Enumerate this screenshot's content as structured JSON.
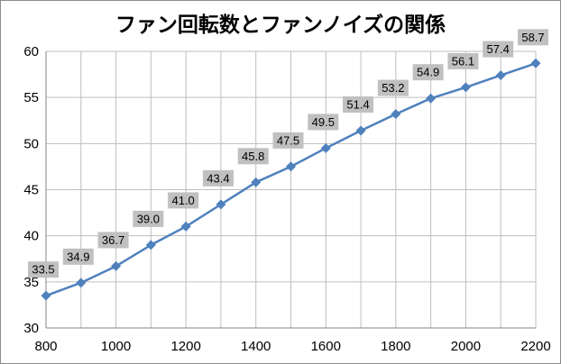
{
  "chart_data": {
    "type": "line",
    "title": "ファン回転数とファンノイズの関係",
    "xlabel": "",
    "ylabel": "",
    "xlim": [
      800,
      2200
    ],
    "ylim": [
      30,
      60
    ],
    "x_ticks": [
      800,
      1000,
      1200,
      1400,
      1600,
      1800,
      2000,
      2200
    ],
    "y_ticks": [
      30,
      35,
      40,
      45,
      50,
      55,
      60
    ],
    "x_tick_labels": [
      "800",
      "1000",
      "1200",
      "1400",
      "1600",
      "1800",
      "2000",
      "2200"
    ],
    "y_tick_labels": [
      "30",
      "35",
      "40",
      "45",
      "50",
      "55",
      "60"
    ],
    "grid": true,
    "legend": "none",
    "series": [
      {
        "color": "#4f81bd",
        "marker": "diamond",
        "x": [
          800,
          900,
          1000,
          1100,
          1200,
          1300,
          1400,
          1500,
          1600,
          1700,
          1800,
          1900,
          2000,
          2100,
          2200
        ],
        "y": [
          33.5,
          34.9,
          36.7,
          39.0,
          41.0,
          43.4,
          45.8,
          47.5,
          49.5,
          51.4,
          53.2,
          54.9,
          56.1,
          57.4,
          58.7
        ],
        "labels": [
          "33.5",
          "34.9",
          "36.7",
          "39.0",
          "41.0",
          "43.4",
          "45.8",
          "47.5",
          "49.5",
          "51.4",
          "53.2",
          "54.9",
          "56.1",
          "57.4",
          "58.7"
        ]
      }
    ],
    "data_label_bg": "#c0c0c0"
  }
}
